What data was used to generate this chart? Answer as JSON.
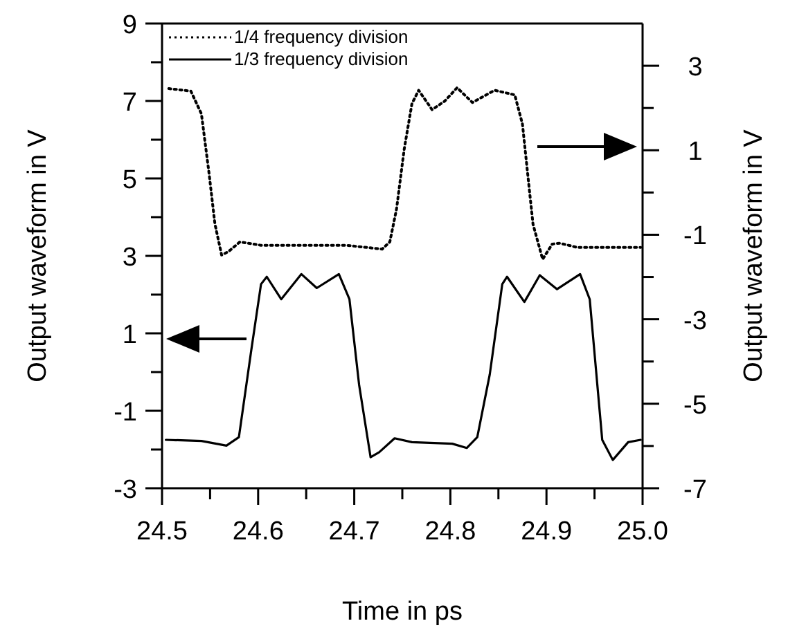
{
  "chart_data": {
    "type": "line",
    "xlabel": "Time in ps",
    "ylabel": "Output waveform in V",
    "y2label": "Output waveform in V",
    "xlim": [
      24.5,
      25.0
    ],
    "xticks": [
      {
        "value": 24.5,
        "label": "24.5"
      },
      {
        "value": 24.55,
        "label": null
      },
      {
        "value": 24.6,
        "label": "24.6"
      },
      {
        "value": 24.65,
        "label": null
      },
      {
        "value": 24.7,
        "label": "24.7"
      },
      {
        "value": 24.75,
        "label": null
      },
      {
        "value": 24.8,
        "label": "24.8"
      },
      {
        "value": 24.85,
        "label": null
      },
      {
        "value": 24.9,
        "label": "24.9"
      },
      {
        "value": 24.95,
        "label": null
      },
      {
        "value": 25.0,
        "label": "25.0"
      }
    ],
    "ylim": [
      -3,
      9
    ],
    "yticks": [
      -3,
      {
        "value": -2,
        "label": null
      },
      -1,
      {
        "value": 0,
        "label": null
      },
      1,
      {
        "value": 2,
        "label": null
      },
      3,
      {
        "value": 4,
        "label": null
      },
      5,
      {
        "value": 6,
        "label": null
      },
      7,
      {
        "value": 8,
        "label": null
      },
      9
    ],
    "y2lim": [
      -7,
      4
    ],
    "y2ticks": [
      -7,
      {
        "value": -6,
        "label": null
      },
      -5,
      {
        "value": -4,
        "label": null
      },
      -3,
      {
        "value": -2,
        "label": null
      },
      -1,
      {
        "value": 0,
        "label": null
      },
      1,
      {
        "value": 2,
        "label": null
      },
      3
    ],
    "legend": "top left",
    "grid": false,
    "series": [
      {
        "name": "1/4 frequency division",
        "color": "#000000",
        "axis": "y2",
        "line_style": "dotted",
        "x": [
          24.507,
          24.53,
          24.541,
          24.549,
          24.555,
          24.562,
          24.569,
          24.581,
          24.603,
          24.645,
          24.692,
          24.729,
          24.737,
          24.744,
          24.752,
          24.76,
          24.767,
          24.781,
          24.794,
          24.807,
          24.823,
          24.846,
          24.867,
          24.875,
          24.881,
          24.886,
          24.896,
          24.906,
          24.914,
          24.932,
          24.958,
          24.998
        ],
        "values": [
          2.46,
          2.4,
          1.86,
          0.44,
          -0.74,
          -1.48,
          -1.4,
          -1.17,
          -1.25,
          -1.25,
          -1.25,
          -1.34,
          -1.17,
          -0.39,
          1.03,
          2.1,
          2.42,
          1.96,
          2.16,
          2.48,
          2.13,
          2.42,
          2.31,
          1.62,
          0.32,
          -0.75,
          -1.58,
          -1.22,
          -1.2,
          -1.3,
          -1.3,
          -1.3
        ]
      },
      {
        "name": "1/3 frequency division",
        "color": "#000000",
        "axis": "y",
        "line_style": "solid",
        "x": [
          24.504,
          24.541,
          24.567,
          24.58,
          24.593,
          24.603,
          24.609,
          24.624,
          24.645,
          24.661,
          24.684,
          24.695,
          24.705,
          24.717,
          24.726,
          24.742,
          24.76,
          24.802,
          24.817,
          24.828,
          24.841,
          24.854,
          24.859,
          24.877,
          24.893,
          24.911,
          24.935,
          24.945,
          24.958,
          24.969,
          24.985,
          24.998
        ],
        "values": [
          -1.75,
          -1.78,
          -1.9,
          -1.68,
          0.59,
          2.27,
          2.46,
          1.88,
          2.53,
          2.17,
          2.53,
          1.88,
          -0.32,
          -2.2,
          -2.07,
          -1.71,
          -1.81,
          -1.85,
          -1.96,
          -1.68,
          -0.06,
          2.27,
          2.46,
          1.81,
          2.5,
          2.14,
          2.53,
          1.88,
          -1.75,
          -2.27,
          -1.81,
          -1.75
        ]
      }
    ]
  }
}
